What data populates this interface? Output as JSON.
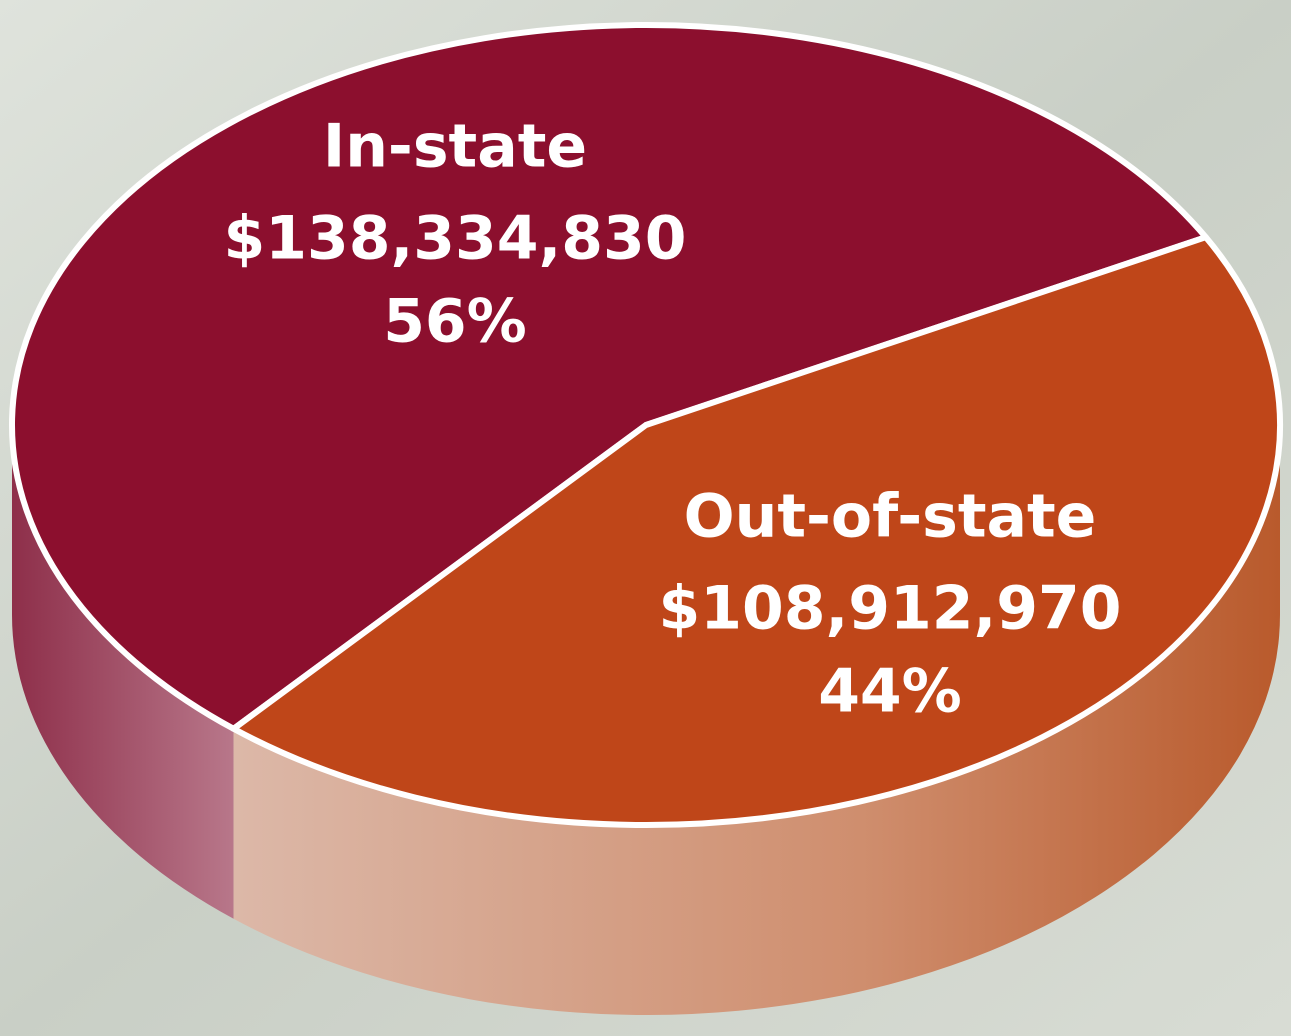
{
  "chart_data": {
    "type": "pie",
    "categories": [
      "In-state",
      "Out-of-state"
    ],
    "values": [
      138334830,
      108912970
    ],
    "value_labels": [
      "$138,334,830",
      "$108,912,970"
    ],
    "percents": [
      56,
      44
    ],
    "percent_labels": [
      "56%",
      "44%"
    ],
    "colors": [
      "#8c0f2e",
      "#bf4619"
    ]
  }
}
